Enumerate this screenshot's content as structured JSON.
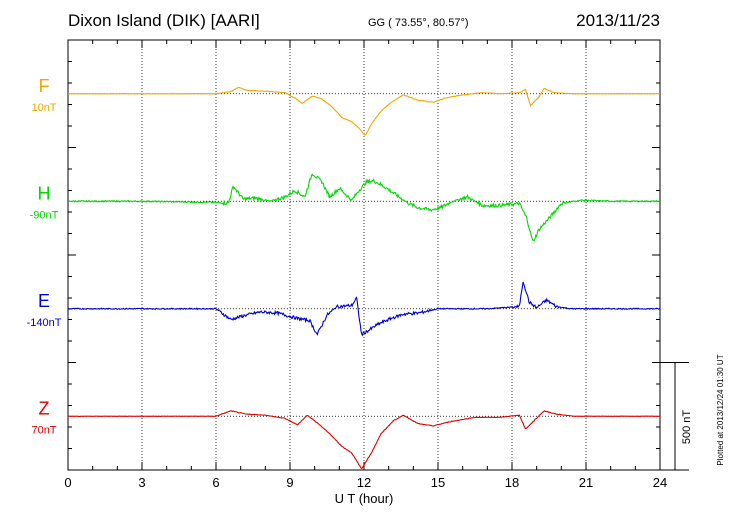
{
  "title": "Dixon Island (DIK)  [AARI]",
  "coords": "GG ( 73.55°,  80.57°)",
  "date": "2013/11/23",
  "scale_label": "500 nT",
  "plotted_note": "Plotted at 2013/12/24 01:30 UT",
  "chart_data": {
    "type": "line",
    "title": "Dixon Island (DIK)  [AARI]",
    "xlabel": "U T (hour)",
    "ylabel": "",
    "xlim": [
      0,
      24
    ],
    "x_ticks": [
      0,
      3,
      6,
      9,
      12,
      15,
      18,
      21,
      24
    ],
    "x_tick_labels": [
      "0",
      "3",
      "6",
      "9",
      "12",
      "15",
      "18",
      "21",
      "24"
    ],
    "grid": true,
    "units": "nT",
    "scale_bar_nT": 500,
    "plot_range_nT": 2000,
    "series": [
      {
        "name": "F",
        "baseline_label": "10nT",
        "baseline_nT": 750,
        "color": "#f0a800",
        "points": [
          [
            0,
            0
          ],
          [
            3,
            0
          ],
          [
            6,
            0
          ],
          [
            6.6,
            10
          ],
          [
            6.9,
            30
          ],
          [
            7.3,
            15
          ],
          [
            8,
            12
          ],
          [
            8.8,
            5
          ],
          [
            9.2,
            -20
          ],
          [
            9.5,
            -45
          ],
          [
            9.9,
            -10
          ],
          [
            10.3,
            -25
          ],
          [
            10.7,
            -60
          ],
          [
            11.1,
            -110
          ],
          [
            11.5,
            -130
          ],
          [
            11.8,
            -160
          ],
          [
            12.05,
            -195
          ],
          [
            12.3,
            -140
          ],
          [
            12.7,
            -80
          ],
          [
            13.1,
            -40
          ],
          [
            13.6,
            -5
          ],
          [
            14.2,
            -30
          ],
          [
            14.8,
            -40
          ],
          [
            15.3,
            -20
          ],
          [
            16,
            -5
          ],
          [
            16.8,
            5
          ],
          [
            17.5,
            0
          ],
          [
            18.3,
            5
          ],
          [
            18.55,
            20
          ],
          [
            18.75,
            -55
          ],
          [
            19.1,
            -15
          ],
          [
            19.3,
            25
          ],
          [
            19.7,
            5
          ],
          [
            20.5,
            0
          ],
          [
            24,
            0
          ]
        ]
      },
      {
        "name": "H",
        "baseline_label": "-90nT",
        "baseline_nT": 250,
        "color": "#00d800",
        "points": [
          [
            0,
            0
          ],
          [
            3,
            0
          ],
          [
            6,
            -5
          ],
          [
            6.5,
            -10
          ],
          [
            6.7,
            70
          ],
          [
            7.1,
            10
          ],
          [
            7.6,
            15
          ],
          [
            8.2,
            0
          ],
          [
            8.8,
            20
          ],
          [
            9.2,
            50
          ],
          [
            9.6,
            20
          ],
          [
            9.9,
            130
          ],
          [
            10.3,
            90
          ],
          [
            10.6,
            20
          ],
          [
            11,
            60
          ],
          [
            11.5,
            5
          ],
          [
            11.8,
            50
          ],
          [
            12.1,
            90
          ],
          [
            12.4,
            95
          ],
          [
            12.8,
            70
          ],
          [
            13.3,
            30
          ],
          [
            13.8,
            -10
          ],
          [
            14.2,
            -30
          ],
          [
            14.7,
            -40
          ],
          [
            15.1,
            -30
          ],
          [
            15.6,
            0
          ],
          [
            16.2,
            20
          ],
          [
            16.8,
            -20
          ],
          [
            17.5,
            -20
          ],
          [
            18.3,
            -10
          ],
          [
            18.6,
            -80
          ],
          [
            18.85,
            -190
          ],
          [
            19.1,
            -130
          ],
          [
            19.5,
            -80
          ],
          [
            20,
            -10
          ],
          [
            20.8,
            5
          ],
          [
            22,
            0
          ],
          [
            24,
            0
          ]
        ]
      },
      {
        "name": "E",
        "baseline_label": "-140nT",
        "baseline_nT": -250,
        "color": "#0000d0",
        "points": [
          [
            0,
            0
          ],
          [
            3,
            0
          ],
          [
            6,
            0
          ],
          [
            6.6,
            -50
          ],
          [
            7.2,
            -30
          ],
          [
            7.8,
            -15
          ],
          [
            8.5,
            -20
          ],
          [
            9.3,
            -45
          ],
          [
            9.8,
            -55
          ],
          [
            10.1,
            -120
          ],
          [
            10.5,
            -30
          ],
          [
            10.9,
            10
          ],
          [
            11.5,
            15
          ],
          [
            11.7,
            50
          ],
          [
            11.9,
            -120
          ],
          [
            12.2,
            -100
          ],
          [
            12.6,
            -70
          ],
          [
            13.1,
            -45
          ],
          [
            13.6,
            -25
          ],
          [
            14.2,
            -20
          ],
          [
            15,
            0
          ],
          [
            16,
            0
          ],
          [
            17,
            0
          ],
          [
            18.3,
            10
          ],
          [
            18.45,
            130
          ],
          [
            18.7,
            30
          ],
          [
            19,
            5
          ],
          [
            19.4,
            40
          ],
          [
            19.8,
            10
          ],
          [
            20.4,
            0
          ],
          [
            24,
            0
          ]
        ]
      },
      {
        "name": "Z",
        "baseline_label": "70nT",
        "baseline_nT": -750,
        "color": "#e00000",
        "points": [
          [
            0,
            0
          ],
          [
            3,
            0
          ],
          [
            6,
            0
          ],
          [
            6.6,
            25
          ],
          [
            7.2,
            10
          ],
          [
            8,
            5
          ],
          [
            8.8,
            -10
          ],
          [
            9.3,
            -40
          ],
          [
            9.7,
            5
          ],
          [
            10.1,
            -30
          ],
          [
            10.6,
            -80
          ],
          [
            11.1,
            -140
          ],
          [
            11.5,
            -170
          ],
          [
            11.9,
            -245
          ],
          [
            12.3,
            -170
          ],
          [
            12.7,
            -80
          ],
          [
            13.2,
            -20
          ],
          [
            13.6,
            5
          ],
          [
            14.2,
            -35
          ],
          [
            14.8,
            -45
          ],
          [
            15.5,
            -25
          ],
          [
            16.5,
            -5
          ],
          [
            17.5,
            -5
          ],
          [
            18.3,
            5
          ],
          [
            18.55,
            -60
          ],
          [
            18.9,
            -20
          ],
          [
            19.3,
            25
          ],
          [
            19.8,
            10
          ],
          [
            20.5,
            0
          ],
          [
            24,
            0
          ]
        ]
      }
    ]
  }
}
